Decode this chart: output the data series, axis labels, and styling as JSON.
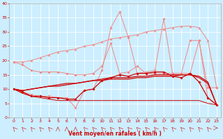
{
  "xlabel": "Vent moyen/en rafales ( km/h )",
  "background_color": "#cceeff",
  "grid_color": "#ffffff",
  "xlim": [
    -0.5,
    23.5
  ],
  "ylim": [
    0,
    40
  ],
  "yticks": [
    0,
    5,
    10,
    15,
    20,
    25,
    30,
    35,
    40
  ],
  "xticks": [
    0,
    1,
    2,
    3,
    4,
    5,
    6,
    7,
    8,
    9,
    10,
    11,
    12,
    13,
    14,
    15,
    16,
    17,
    18,
    19,
    20,
    21,
    22,
    23
  ],
  "x": [
    0,
    1,
    2,
    3,
    4,
    5,
    6,
    7,
    8,
    9,
    10,
    11,
    12,
    13,
    14,
    15,
    16,
    17,
    18,
    19,
    20,
    21,
    22,
    23
  ],
  "line_rafales_y": [
    10,
    9,
    8,
    7.5,
    7.5,
    7,
    7,
    3.5,
    9.5,
    10,
    16.5,
    31.5,
    37,
    28,
    15.5,
    16,
    16.5,
    34.5,
    15.5,
    15.5,
    15.5,
    27,
    7,
    4.5
  ],
  "line_upper1_y": [
    19.5,
    18.5,
    16.5,
    16,
    16,
    16,
    15.5,
    15,
    15,
    15.5,
    18,
    26,
    15.5,
    16,
    18,
    15.5,
    15.5,
    15.5,
    15.5,
    15.5,
    27,
    27,
    10.5,
    10.5
  ],
  "line_upper2_y": [
    19.5,
    19.5,
    20,
    21,
    22,
    23,
    23.5,
    24,
    25,
    25.5,
    26.5,
    27.5,
    28,
    28.5,
    29,
    30,
    30.5,
    31,
    31.5,
    32,
    32,
    31.5,
    27,
    10.5
  ],
  "line_mid1_y": [
    10,
    9,
    7.5,
    7.5,
    7,
    7,
    6.5,
    6.5,
    9.5,
    10,
    13,
    14,
    15,
    14.5,
    15.5,
    15.5,
    16,
    16,
    14.5,
    14,
    15.5,
    12.5,
    7,
    4.5
  ],
  "line_flat_y": [
    10,
    8.5,
    7.5,
    7,
    6.5,
    6,
    6,
    6,
    6,
    6,
    6,
    6,
    6,
    6,
    6,
    6,
    6,
    6,
    6,
    6,
    6,
    6,
    5,
    4.5
  ],
  "line_trend1_y": [
    10,
    9.5,
    10,
    10.5,
    11,
    11.5,
    12,
    12,
    12.5,
    13,
    13,
    13.5,
    13.5,
    13.5,
    14,
    14,
    14.5,
    14.5,
    14.5,
    15,
    15,
    14.5,
    12.5,
    4.5
  ],
  "line_trend2_y": [
    10,
    9.5,
    10,
    10.5,
    11,
    11,
    11.5,
    12,
    12.5,
    13,
    13.5,
    14,
    14,
    14,
    14.5,
    14.5,
    15,
    15,
    15,
    15,
    15,
    14,
    12,
    4.5
  ],
  "color_light": "#f08888",
  "color_dark": "#cc0000",
  "arrow_angles": [
    315,
    315,
    315,
    315,
    315,
    0,
    0,
    0,
    315,
    315,
    315,
    315,
    315,
    315,
    315,
    315,
    315,
    315,
    315,
    315,
    315,
    315,
    315,
    90
  ]
}
